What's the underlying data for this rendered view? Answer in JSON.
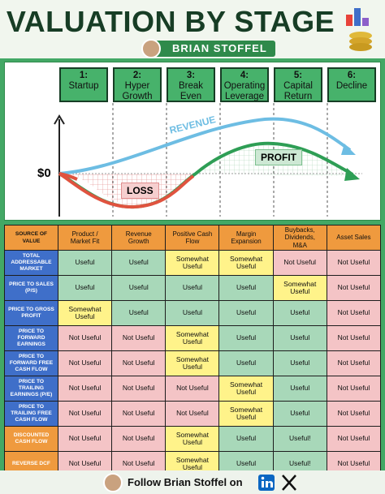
{
  "header": {
    "title": "VALUATION BY STAGE",
    "author": "BRIAN STOFFEL"
  },
  "stages": [
    {
      "number": "1:",
      "name": "Startup"
    },
    {
      "number": "2:",
      "name": "Hyper Growth"
    },
    {
      "number": "3:",
      "name": "Break Even"
    },
    {
      "number": "4:",
      "name": "Operating Leverage"
    },
    {
      "number": "5:",
      "name": "Capital Return"
    },
    {
      "number": "6:",
      "name": "Decline"
    }
  ],
  "diagram": {
    "zero_label": "$0",
    "revenue_label": "REVENUE",
    "profit_label": "PROFIT",
    "loss_label": "LOSS"
  },
  "table": {
    "corner": "SOURCE OF VALUE",
    "columns": [
      "Product / Market Fit",
      "Revenue Growth",
      "Positive Cash Flow",
      "Margin Expansion",
      "Buybacks, Dividends, M&A",
      "Asset Sales"
    ],
    "rows": [
      {
        "label": "TOTAL ADDRESSABLE MARKET",
        "color": "#3f6fc9",
        "cells": [
          {
            "text": "Useful",
            "color": "#a8d8b9"
          },
          {
            "text": "Useful",
            "color": "#a8d8b9"
          },
          {
            "text": "Somewhat Useful",
            "color": "#fff38a"
          },
          {
            "text": "Somewhat Useful",
            "color": "#fff38a"
          },
          {
            "text": "Not Useful",
            "color": "#f4c4c6"
          },
          {
            "text": "Not Useful",
            "color": "#f4c4c6"
          }
        ]
      },
      {
        "label": "PRICE TO SALES (P/S)",
        "color": "#3f6fc9",
        "cells": [
          {
            "text": "Useful",
            "color": "#a8d8b9"
          },
          {
            "text": "Useful",
            "color": "#a8d8b9"
          },
          {
            "text": "Useful",
            "color": "#a8d8b9"
          },
          {
            "text": "Useful",
            "color": "#a8d8b9"
          },
          {
            "text": "Somewhat Useful",
            "color": "#fff38a"
          },
          {
            "text": "Not Useful",
            "color": "#f4c4c6"
          }
        ]
      },
      {
        "label": "PRICE TO GROSS PROFIT",
        "color": "#3f6fc9",
        "cells": [
          {
            "text": "Somewhat Useful",
            "color": "#fff38a"
          },
          {
            "text": "Useful",
            "color": "#a8d8b9"
          },
          {
            "text": "Useful",
            "color": "#a8d8b9"
          },
          {
            "text": "Useful",
            "color": "#a8d8b9"
          },
          {
            "text": "Useful",
            "color": "#a8d8b9"
          },
          {
            "text": "Not Useful",
            "color": "#f4c4c6"
          }
        ]
      },
      {
        "label": "PRICE TO FORWARD EARNINGS",
        "color": "#3f6fc9",
        "cells": [
          {
            "text": "Not Useful",
            "color": "#f4c4c6"
          },
          {
            "text": "Not Useful",
            "color": "#f4c4c6"
          },
          {
            "text": "Somewhat Useful",
            "color": "#fff38a"
          },
          {
            "text": "Useful",
            "color": "#a8d8b9"
          },
          {
            "text": "Useful",
            "color": "#a8d8b9"
          },
          {
            "text": "Not Useful",
            "color": "#f4c4c6"
          }
        ]
      },
      {
        "label": "PRICE TO FORWARD FREE CASH FLOW",
        "color": "#3f6fc9",
        "cells": [
          {
            "text": "Not Useful",
            "color": "#f4c4c6"
          },
          {
            "text": "Not Useful",
            "color": "#f4c4c6"
          },
          {
            "text": "Somewhat Useful",
            "color": "#fff38a"
          },
          {
            "text": "Useful",
            "color": "#a8d8b9"
          },
          {
            "text": "Useful",
            "color": "#a8d8b9"
          },
          {
            "text": "Not Useful",
            "color": "#f4c4c6"
          }
        ]
      },
      {
        "label": "PRICE TO TRAILING EARNINGS (P/E)",
        "color": "#3f6fc9",
        "cells": [
          {
            "text": "Not Useful",
            "color": "#f4c4c6"
          },
          {
            "text": "Not Useful",
            "color": "#f4c4c6"
          },
          {
            "text": "Not Useful",
            "color": "#f4c4c6"
          },
          {
            "text": "Somewhat Useful",
            "color": "#fff38a"
          },
          {
            "text": "Useful",
            "color": "#a8d8b9"
          },
          {
            "text": "Not Useful",
            "color": "#f4c4c6"
          }
        ]
      },
      {
        "label": "PRICE TO TRAILING FREE CASH FLOW",
        "color": "#3f6fc9",
        "cells": [
          {
            "text": "Not Useful",
            "color": "#f4c4c6"
          },
          {
            "text": "Not Useful",
            "color": "#f4c4c6"
          },
          {
            "text": "Not Useful",
            "color": "#f4c4c6"
          },
          {
            "text": "Somewhat Useful",
            "color": "#fff38a"
          },
          {
            "text": "Useful",
            "color": "#a8d8b9"
          },
          {
            "text": "Not Useful",
            "color": "#f4c4c6"
          }
        ]
      },
      {
        "label": "DISCOUNTED CASH FLOW",
        "color": "#ef9a3e",
        "cells": [
          {
            "text": "Not Useful",
            "color": "#f4c4c6"
          },
          {
            "text": "Not Useful",
            "color": "#f4c4c6"
          },
          {
            "text": "Somewhat Useful",
            "color": "#fff38a"
          },
          {
            "text": "Useful",
            "color": "#a8d8b9"
          },
          {
            "text": "Useful!",
            "color": "#a8d8b9"
          },
          {
            "text": "Not Useful",
            "color": "#f4c4c6"
          }
        ]
      },
      {
        "label": "REVERSE DCF",
        "color": "#ef9a3e",
        "cells": [
          {
            "text": "Not Useful",
            "color": "#f4c4c6"
          },
          {
            "text": "Not Useful",
            "color": "#f4c4c6"
          },
          {
            "text": "Somewhat Useful",
            "color": "#fff38a"
          },
          {
            "text": "Useful",
            "color": "#a8d8b9"
          },
          {
            "text": "Useful!",
            "color": "#a8d8b9"
          },
          {
            "text": "Not Useful",
            "color": "#f4c4c6"
          }
        ]
      }
    ]
  },
  "footer": {
    "text": "Follow Brian Stoffel on"
  }
}
